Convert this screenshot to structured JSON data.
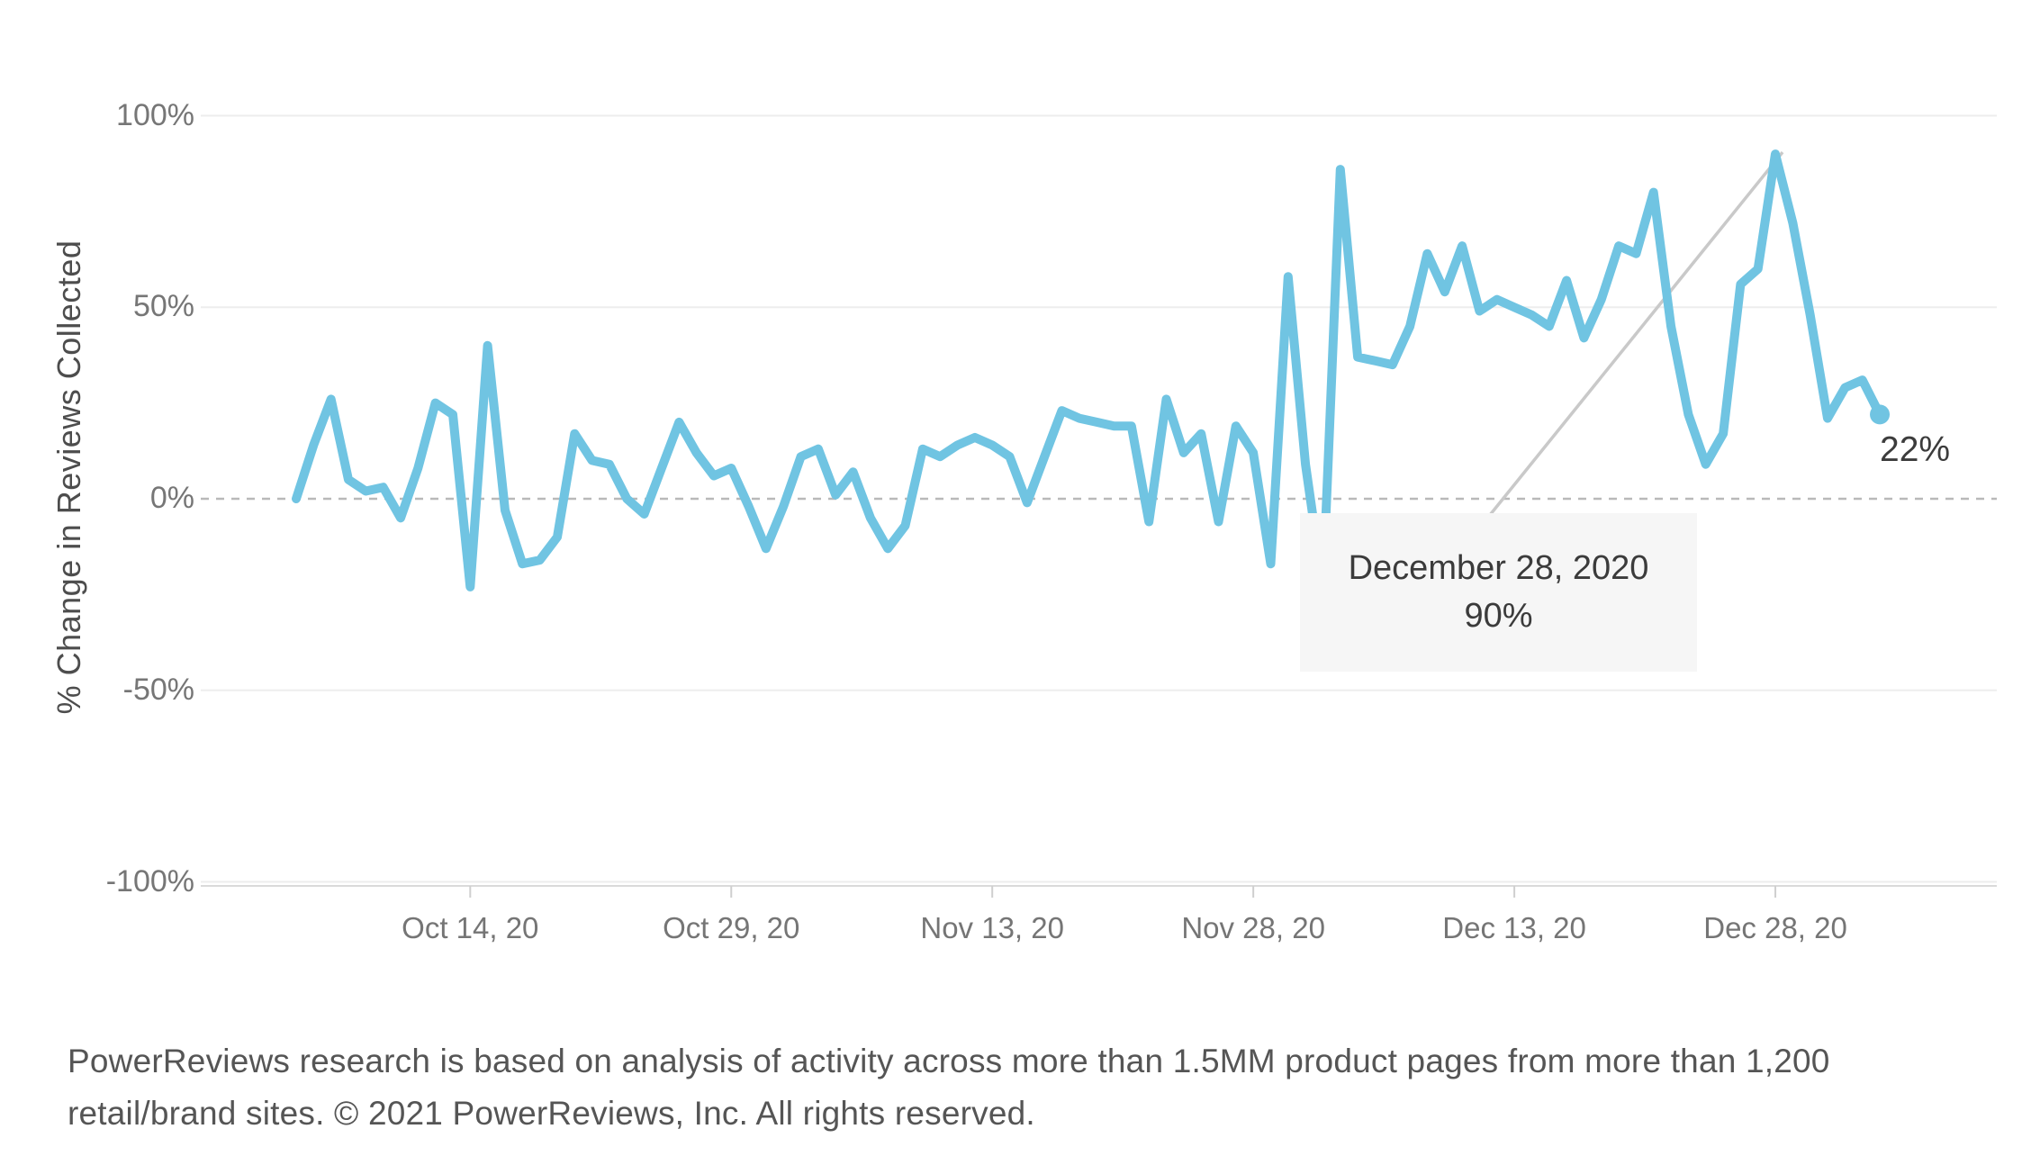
{
  "chart_data": {
    "type": "line",
    "title": "",
    "ylabel": "% Change in Reviews Collected",
    "xlabel": "",
    "ylim": [
      -100,
      100
    ],
    "grid": true,
    "legend": false,
    "line_color": "#70c4e2",
    "zero_line_style": "dashed",
    "x": [
      "2020-10-04",
      "2020-10-05",
      "2020-10-06",
      "2020-10-07",
      "2020-10-08",
      "2020-10-09",
      "2020-10-10",
      "2020-10-11",
      "2020-10-12",
      "2020-10-13",
      "2020-10-14",
      "2020-10-15",
      "2020-10-16",
      "2020-10-17",
      "2020-10-18",
      "2020-10-19",
      "2020-10-20",
      "2020-10-21",
      "2020-10-22",
      "2020-10-23",
      "2020-10-24",
      "2020-10-25",
      "2020-10-26",
      "2020-10-27",
      "2020-10-28",
      "2020-10-29",
      "2020-10-30",
      "2020-10-31",
      "2020-11-01",
      "2020-11-02",
      "2020-11-03",
      "2020-11-04",
      "2020-11-05",
      "2020-11-06",
      "2020-11-07",
      "2020-11-08",
      "2020-11-09",
      "2020-11-10",
      "2020-11-11",
      "2020-11-12",
      "2020-11-13",
      "2020-11-14",
      "2020-11-15",
      "2020-11-16",
      "2020-11-17",
      "2020-11-18",
      "2020-11-19",
      "2020-11-20",
      "2020-11-21",
      "2020-11-22",
      "2020-11-23",
      "2020-11-24",
      "2020-11-25",
      "2020-11-26",
      "2020-11-27",
      "2020-11-28",
      "2020-11-29",
      "2020-11-30",
      "2020-12-01",
      "2020-12-02",
      "2020-12-03",
      "2020-12-04",
      "2020-12-05",
      "2020-12-06",
      "2020-12-07",
      "2020-12-08",
      "2020-12-09",
      "2020-12-10",
      "2020-12-11",
      "2020-12-12",
      "2020-12-13",
      "2020-12-14",
      "2020-12-15",
      "2020-12-16",
      "2020-12-17",
      "2020-12-18",
      "2020-12-19",
      "2020-12-20",
      "2020-12-21",
      "2020-12-22",
      "2020-12-23",
      "2020-12-24",
      "2020-12-25",
      "2020-12-26",
      "2020-12-27",
      "2020-12-28",
      "2020-12-29",
      "2020-12-30",
      "2020-12-31",
      "2021-01-01",
      "2021-01-02",
      "2021-01-03"
    ],
    "values": [
      0,
      14,
      26,
      5,
      2,
      3,
      -5,
      8,
      25,
      22,
      -23,
      40,
      -3,
      -17,
      -16,
      -10,
      17,
      10,
      9,
      0,
      -4,
      8,
      20,
      12,
      6,
      8,
      -2,
      -13,
      -2,
      11,
      13,
      1,
      7,
      -5,
      -13,
      -7,
      13,
      11,
      14,
      16,
      14,
      11,
      -1,
      11,
      23,
      21,
      20,
      19,
      19,
      -6,
      26,
      12,
      17,
      -6,
      19,
      12,
      -17,
      58,
      9,
      -23,
      86,
      37,
      36,
      35,
      45,
      64,
      54,
      66,
      49,
      52,
      50,
      48,
      45,
      57,
      42,
      52,
      66,
      64,
      80,
      45,
      22,
      9,
      17,
      56,
      60,
      90,
      72,
      48,
      21,
      29,
      31,
      22
    ],
    "y_ticks": [
      {
        "label": "100%",
        "value": 100
      },
      {
        "label": "50%",
        "value": 50
      },
      {
        "label": "0%",
        "value": 0
      },
      {
        "label": "-50%",
        "value": -50
      },
      {
        "label": "-100%",
        "value": -100
      }
    ],
    "x_ticks": [
      {
        "label": "Oct 14, 20",
        "index": 10
      },
      {
        "label": "Oct 29, 20",
        "index": 25
      },
      {
        "label": "Nov 13, 20",
        "index": 40
      },
      {
        "label": "Nov 28, 20",
        "index": 55
      },
      {
        "label": "Dec 13, 20",
        "index": 70
      },
      {
        "label": "Dec 28, 20",
        "index": 85
      }
    ],
    "annotation": {
      "line1": "December 28, 2020",
      "line2": "90%",
      "index": 85,
      "value": 90
    },
    "end_label": "22%",
    "end_value": 22
  },
  "footer": {
    "line1": "PowerReviews research is based on analysis of activity across more than 1.5MM product pages from more than 1,200",
    "line2": "retail/brand sites. © 2021 PowerReviews, Inc. All rights reserved."
  }
}
